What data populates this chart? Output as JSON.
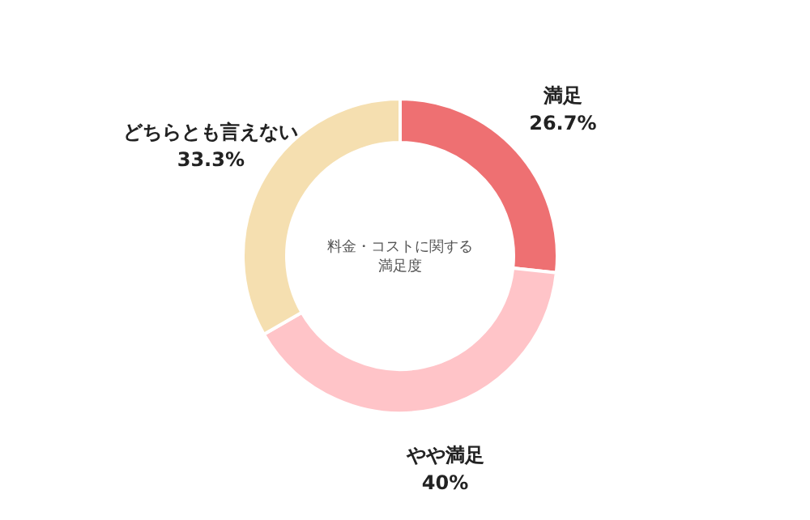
{
  "chart_data": {
    "type": "donut",
    "title": "料金・コストに関する満足度",
    "categories": [
      "満足",
      "やや満足",
      "どちらとも言えない"
    ],
    "values": [
      26.7,
      40,
      33.3
    ],
    "colors": [
      "#ee7072",
      "#ffc4c8",
      "#f5dfb0"
    ],
    "value_labels": [
      "26.7%",
      "40%",
      "33.3%"
    ]
  }
}
